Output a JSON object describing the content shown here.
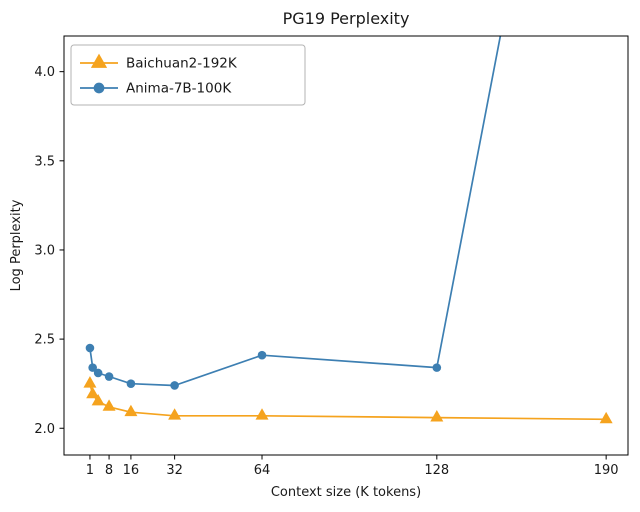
{
  "chart_data": {
    "type": "line",
    "title": "PG19 Perplexity",
    "xlabel": "Context size (K tokens)",
    "ylabel": "Log Perplexity",
    "xlim": [
      -8.5,
      198
    ],
    "ylim": [
      1.85,
      4.2
    ],
    "xticks": [
      1,
      8,
      16,
      32,
      64,
      128,
      190
    ],
    "yticks": [
      "2.0",
      "2.5",
      "3.0",
      "3.5",
      "4.0"
    ],
    "grid": false,
    "legend_position": "upper-left",
    "colors": {
      "baichuan_orange": "#f5a31e",
      "anima_blue": "#3d7fb2",
      "axis": "#000000",
      "legend_border": "#b3b3b3"
    },
    "series": [
      {
        "name": "Baichuan2-192K",
        "color": "#f5a31e",
        "marker": "triangle",
        "x": [
          1,
          2,
          4,
          8,
          16,
          32,
          64,
          128,
          190
        ],
        "y": [
          2.25,
          2.19,
          2.15,
          2.12,
          2.09,
          2.07,
          2.07,
          2.06,
          2.05
        ]
      },
      {
        "name": "Anima-7B-100K",
        "color": "#3d7fb2",
        "marker": "circle",
        "x": [
          1,
          2,
          4,
          8,
          16,
          32,
          64,
          128,
          155
        ],
        "y": [
          2.45,
          2.34,
          2.31,
          2.29,
          2.25,
          2.24,
          2.41,
          2.34,
          4.5
        ],
        "note": "final point clipped above top of axes"
      }
    ]
  }
}
